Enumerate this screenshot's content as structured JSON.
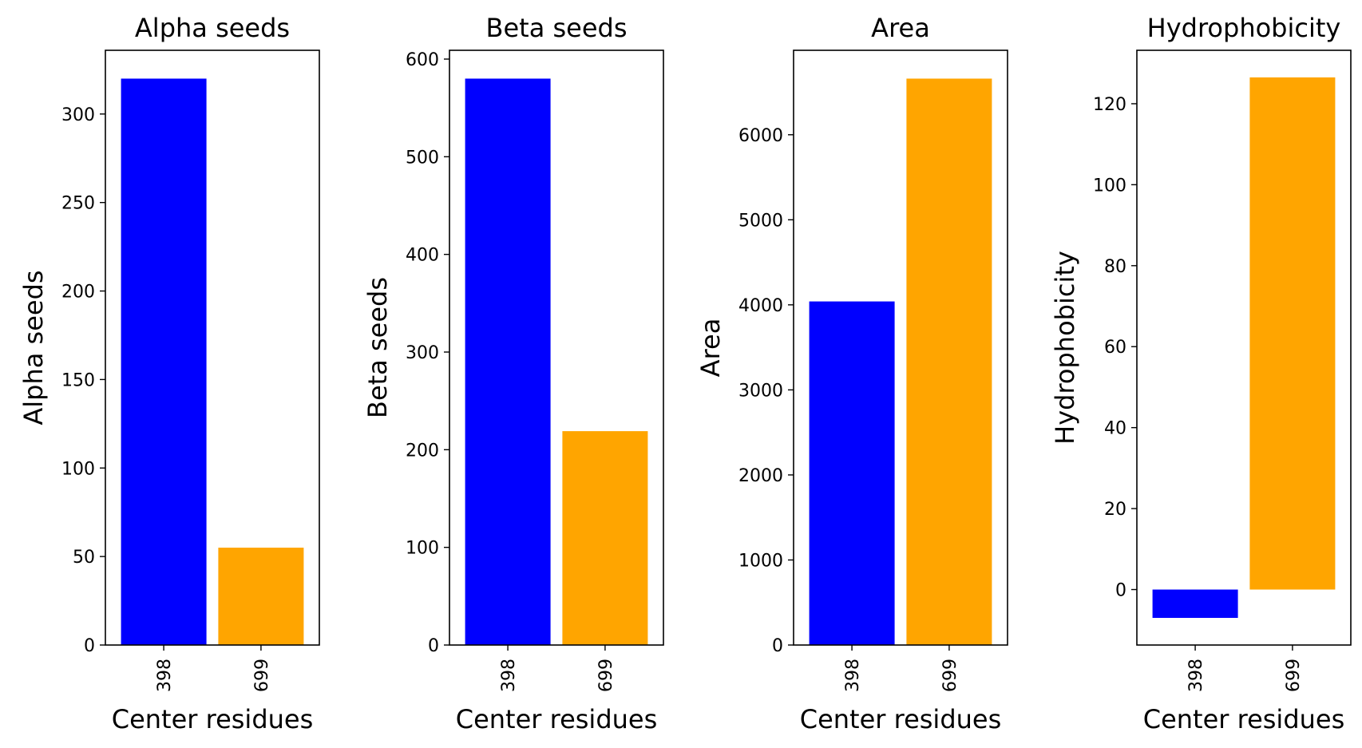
{
  "bar_colors": [
    "#0000ff",
    "#ffa500"
  ],
  "chart_data": [
    {
      "type": "bar",
      "title": "Alpha seeds",
      "xlabel": "Center residues",
      "ylabel": "Alpha seeds",
      "categories": [
        "398",
        "699"
      ],
      "values": [
        320,
        55
      ],
      "ylim": [
        0,
        336
      ],
      "yticks": [
        0,
        50,
        100,
        150,
        200,
        250,
        300
      ],
      "grid": false,
      "legend": "none"
    },
    {
      "type": "bar",
      "title": "Beta seeds",
      "xlabel": "Center residues",
      "ylabel": "Beta seeds",
      "categories": [
        "398",
        "699"
      ],
      "values": [
        580,
        219
      ],
      "ylim": [
        0,
        609
      ],
      "yticks": [
        0,
        100,
        200,
        300,
        400,
        500,
        600
      ],
      "grid": false,
      "legend": "none"
    },
    {
      "type": "bar",
      "title": "Area",
      "xlabel": "Center residues",
      "ylabel": "Area",
      "categories": [
        "398",
        "699"
      ],
      "values": [
        4040,
        6660
      ],
      "ylim": [
        0,
        6993
      ],
      "yticks": [
        0,
        1000,
        2000,
        3000,
        4000,
        5000,
        6000
      ],
      "grid": false,
      "legend": "none"
    },
    {
      "type": "bar",
      "title": "Hydrophobicity",
      "xlabel": "Center residues",
      "ylabel": "Hydrophobicity",
      "categories": [
        "398",
        "699"
      ],
      "values": [
        -7,
        126.5
      ],
      "ylim": [
        -13.7,
        133.2
      ],
      "yticks": [
        0,
        20,
        40,
        60,
        80,
        100,
        120
      ],
      "grid": false,
      "legend": "none"
    }
  ]
}
